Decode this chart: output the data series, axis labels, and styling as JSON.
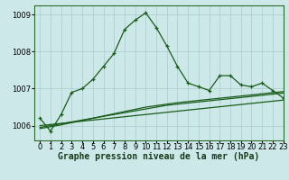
{
  "title": "Graphe pression niveau de la mer (hPa)",
  "bg_color": "#cce8e8",
  "grid_color": "#aacccc",
  "line_color": "#1a5c1a",
  "xlim": [
    -0.5,
    23
  ],
  "ylim": [
    1005.6,
    1009.25
  ],
  "yticks": [
    1006,
    1007,
    1008,
    1009
  ],
  "xticks": [
    0,
    1,
    2,
    3,
    4,
    5,
    6,
    7,
    8,
    9,
    10,
    11,
    12,
    13,
    14,
    15,
    16,
    17,
    18,
    19,
    20,
    21,
    22,
    23
  ],
  "series_main": [
    1006.2,
    1005.85,
    1006.3,
    1006.9,
    1007.0,
    1007.25,
    1007.6,
    1007.95,
    1008.6,
    1008.85,
    1009.05,
    1008.65,
    1008.15,
    1007.6,
    1007.15,
    1007.05,
    1006.95,
    1007.35,
    1007.35,
    1007.1,
    1007.05,
    1007.15,
    1006.95,
    1006.75
  ],
  "series_line1": [
    1006.0,
    1006.03,
    1006.06,
    1006.09,
    1006.12,
    1006.15,
    1006.18,
    1006.21,
    1006.24,
    1006.27,
    1006.3,
    1006.33,
    1006.36,
    1006.39,
    1006.42,
    1006.45,
    1006.48,
    1006.51,
    1006.54,
    1006.57,
    1006.6,
    1006.63,
    1006.66,
    1006.69
  ],
  "series_line2": [
    1005.95,
    1006.0,
    1006.05,
    1006.1,
    1006.15,
    1006.2,
    1006.25,
    1006.3,
    1006.35,
    1006.4,
    1006.45,
    1006.5,
    1006.55,
    1006.58,
    1006.61,
    1006.64,
    1006.67,
    1006.7,
    1006.73,
    1006.76,
    1006.79,
    1006.82,
    1006.85,
    1006.88
  ],
  "series_line3": [
    1005.92,
    1005.97,
    1006.02,
    1006.08,
    1006.14,
    1006.2,
    1006.26,
    1006.32,
    1006.38,
    1006.44,
    1006.5,
    1006.54,
    1006.58,
    1006.62,
    1006.65,
    1006.68,
    1006.71,
    1006.74,
    1006.77,
    1006.8,
    1006.83,
    1006.86,
    1006.89,
    1006.92
  ],
  "marker": "+",
  "marker_size": 3.5,
  "lw_main": 0.9,
  "lw_lines": 0.9,
  "tick_fontsize": 6,
  "title_fontsize": 7,
  "title_fontweight": "bold"
}
